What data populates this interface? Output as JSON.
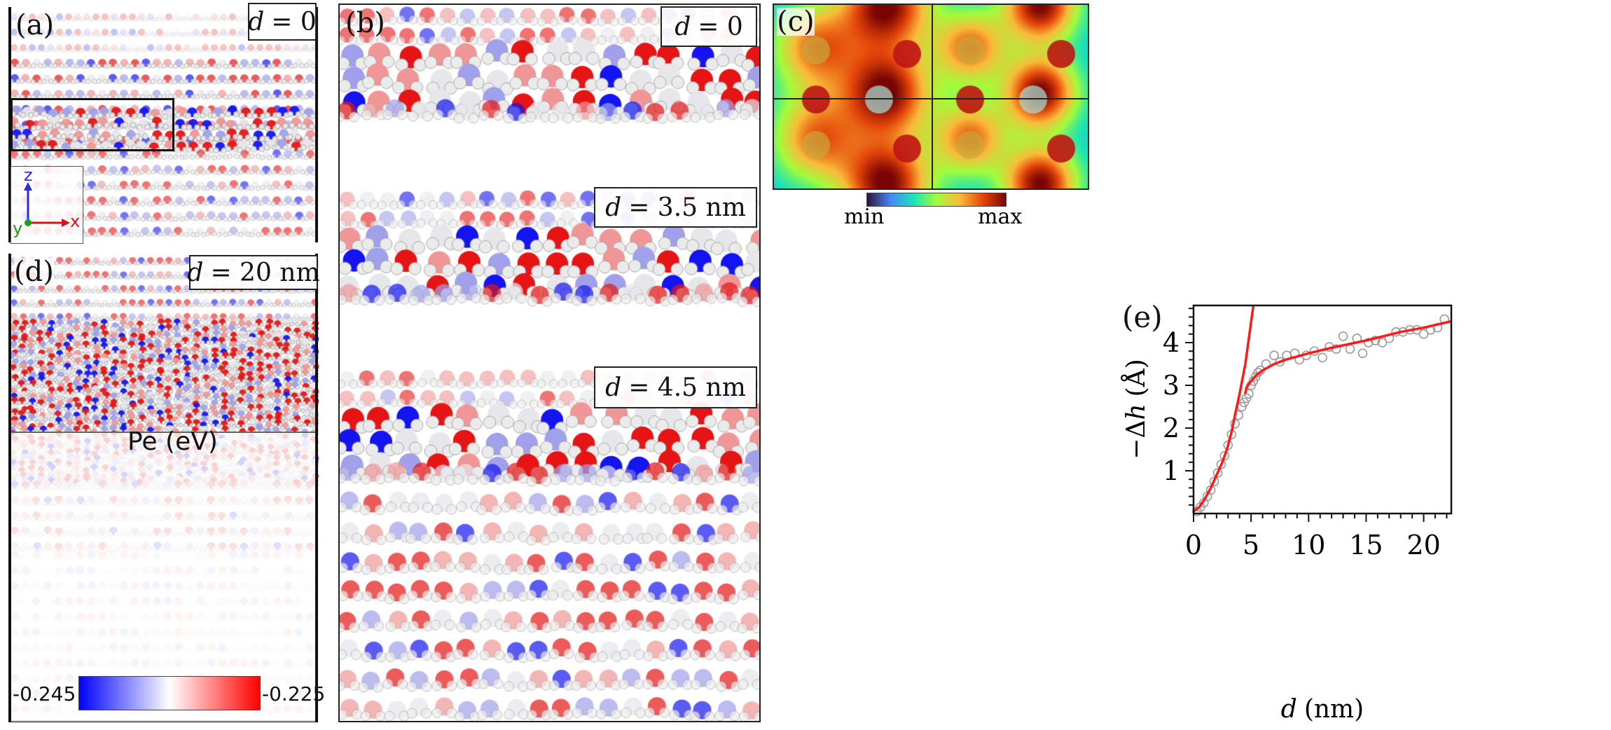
{
  "panels": {
    "a": {
      "label": "(a)",
      "d_var": "d",
      "d_value": "= 0",
      "axes": {
        "z": "z",
        "y": "y",
        "x": "x"
      }
    },
    "b": {
      "label": "(b)",
      "boxes": [
        {
          "d_var": "d",
          "d_value": "= 0"
        },
        {
          "d_var": "d",
          "d_value": "= 3.5 nm"
        },
        {
          "d_var": "d",
          "d_value": "= 4.5 nm"
        }
      ]
    },
    "c": {
      "label": "(c)",
      "colorbar": {
        "min_label": "min",
        "max_label": "max",
        "colormap": [
          "#30123b",
          "#4686fb",
          "#1ae4b6",
          "#a2fc3c",
          "#fabb39",
          "#e4460a",
          "#7a0403"
        ]
      }
    },
    "d": {
      "label": "(d)",
      "d_var": "d",
      "d_value": "= 20 nm",
      "colorbar": {
        "title": "Pe (eV)",
        "min_label": "-0.245",
        "max_label": "-0.225",
        "colors": [
          "#0000ff",
          "#ffffff",
          "#ff0000"
        ]
      }
    },
    "e": {
      "label": "(e)"
    }
  },
  "chart_data": {
    "type": "scatter",
    "xlabel_var": "d",
    "xlabel_unit": "(nm)",
    "ylabel_prefix": "−Δ",
    "ylabel_var": "h",
    "ylabel_unit": "(Å)",
    "xlim": [
      0,
      22.4
    ],
    "ylim": [
      0,
      4.87
    ],
    "xticks": [
      "0",
      "5",
      "10",
      "15",
      "20"
    ],
    "yticks": [
      "1",
      "2",
      "3",
      "4"
    ],
    "grid": false,
    "points": {
      "color": "#9a9a9a",
      "marker": "open-circle",
      "x": [
        0.3,
        0.6,
        0.9,
        1.2,
        1.5,
        1.8,
        2.1,
        2.4,
        2.7,
        3.0,
        3.3,
        3.6,
        3.9,
        4.2,
        4.4,
        4.6,
        4.8,
        5.0,
        5.2,
        5.4,
        5.6,
        5.8,
        6.3,
        7.0,
        7.5,
        8.1,
        8.8,
        9.2,
        9.8,
        10.5,
        11.2,
        11.8,
        12.4,
        13.0,
        13.6,
        14.2,
        14.7,
        15.2,
        15.8,
        16.4,
        17.0,
        17.6,
        18.2,
        18.8,
        19.4,
        20.0,
        20.6,
        21.2,
        21.8
      ],
      "y": [
        0.05,
        0.15,
        0.25,
        0.4,
        0.55,
        0.75,
        0.95,
        1.15,
        1.35,
        1.6,
        1.85,
        2.1,
        2.3,
        2.5,
        2.6,
        2.7,
        2.8,
        3.0,
        3.1,
        3.2,
        3.3,
        3.35,
        3.5,
        3.7,
        3.55,
        3.7,
        3.75,
        3.6,
        3.7,
        3.8,
        3.65,
        3.9,
        3.85,
        4.15,
        3.85,
        4.1,
        3.75,
        4.0,
        4.05,
        4.0,
        4.1,
        4.25,
        4.25,
        4.3,
        4.3,
        4.2,
        4.3,
        4.35,
        4.55
      ]
    },
    "series": [
      {
        "color": "#ff1a1a",
        "x": [
          0,
          0.5,
          1,
          1.5,
          2,
          2.5,
          2.9,
          3.3,
          3.6,
          4.0,
          4.5,
          5.2
        ],
        "y": [
          0.05,
          0.15,
          0.35,
          0.6,
          0.9,
          1.2,
          1.5,
          1.9,
          2.3,
          2.8,
          3.5,
          4.87
        ]
      },
      {
        "color": "#ff1a1a",
        "x": [
          4.5,
          4.6,
          5,
          5.5,
          6,
          7,
          8,
          10,
          12,
          15,
          18,
          20,
          22.4
        ],
        "y": [
          2.8,
          2.95,
          3.1,
          3.25,
          3.35,
          3.5,
          3.6,
          3.75,
          3.88,
          4.05,
          4.25,
          4.35,
          4.5
        ]
      }
    ]
  }
}
